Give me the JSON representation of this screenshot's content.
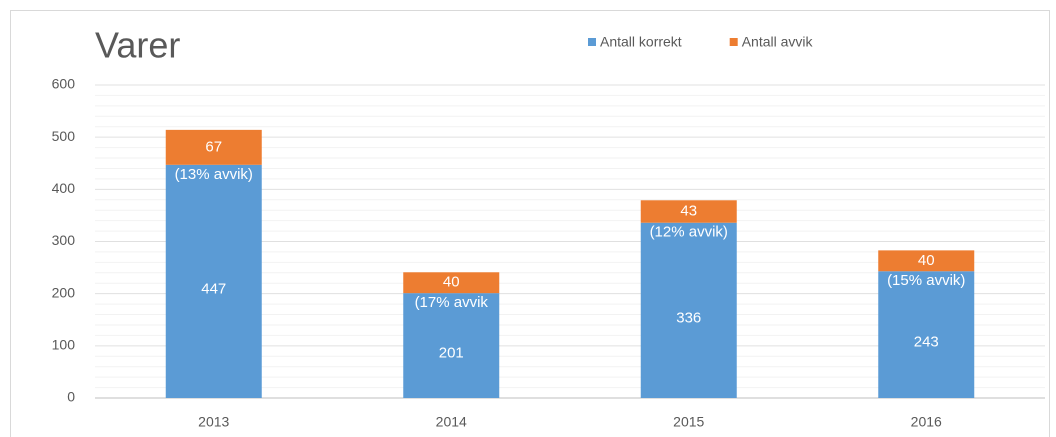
{
  "chart_data": {
    "type": "stacked_bar",
    "title": "Varer",
    "categories": [
      "2013",
      "2014",
      "2015",
      "2016"
    ],
    "series": [
      {
        "name": "Antall korrekt",
        "color": "#5b9bd5",
        "values": [
          447,
          201,
          336,
          243
        ]
      },
      {
        "name": "Antall avvik",
        "color": "#ed7d31",
        "values": [
          67,
          40,
          43,
          40
        ]
      }
    ],
    "annotations": [
      "(13% avvik)",
      "(17% avvik",
      "(12% avvik)",
      "(15% avvik)"
    ],
    "ylim": [
      0,
      600
    ],
    "yticks": [
      0,
      100,
      200,
      300,
      400,
      500,
      600
    ],
    "minor_yticks": [
      20,
      40,
      60,
      80,
      120,
      140,
      160,
      180,
      220,
      240,
      260,
      280,
      320,
      340,
      360,
      380,
      420,
      440,
      460,
      480,
      520,
      540,
      560,
      580
    ],
    "grid": true,
    "legend": "top"
  }
}
